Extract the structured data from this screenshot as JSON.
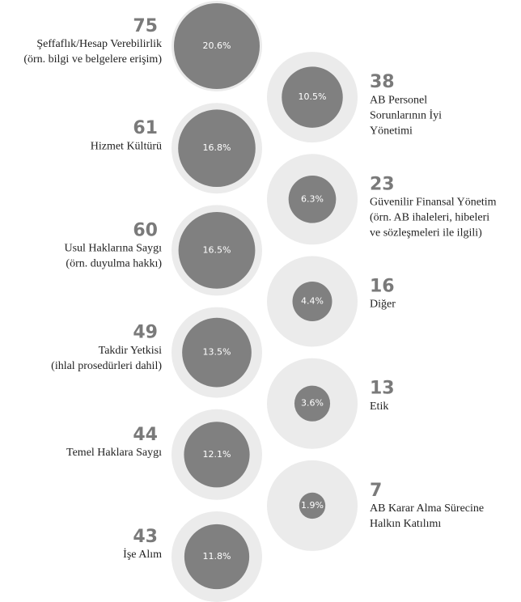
{
  "chart_data": {
    "type": "bubble",
    "categories": [
      [
        "Şeffaflık/Hesap Verebilirlik",
        "(örn. bilgi ve belgelere erişim)"
      ],
      [
        "AB Personel",
        "Sorunlarının İyi",
        "Yönetimi"
      ],
      [
        "Hizmet Kültürü"
      ],
      [
        "Güvenilir Finansal Yönetim",
        "(örn. AB ihaleleri, hibeleri",
        "ve sözleşmeleri ile ilgili)"
      ],
      [
        "Usul Haklarına Saygı",
        "(örn. duyulma hakkı)"
      ],
      [
        "Diğer"
      ],
      [
        "Takdir Yetkisi",
        "(ihlal prosedürleri dahil)"
      ],
      [
        "Etik"
      ],
      [
        "Temel Haklara Saygı"
      ],
      [
        "AB Karar Alma Sürecine",
        "Halkın Katılımı"
      ],
      [
        "İşe Alım"
      ]
    ],
    "values": [
      75,
      38,
      61,
      23,
      60,
      16,
      49,
      13,
      44,
      7,
      43
    ],
    "shares": [
      20.6,
      10.5,
      16.8,
      6.3,
      16.5,
      4.4,
      13.5,
      3.6,
      12.1,
      1.9,
      11.8
    ],
    "share_labels": [
      "20.6%",
      "10.5%",
      "16.8%",
      "6.3%",
      "16.5%",
      "4.4%",
      "13.5%",
      "3.6%",
      "12.1%",
      "1.9%",
      "11.8%"
    ],
    "color": "#808080",
    "ring_color": "#ebebeb"
  }
}
